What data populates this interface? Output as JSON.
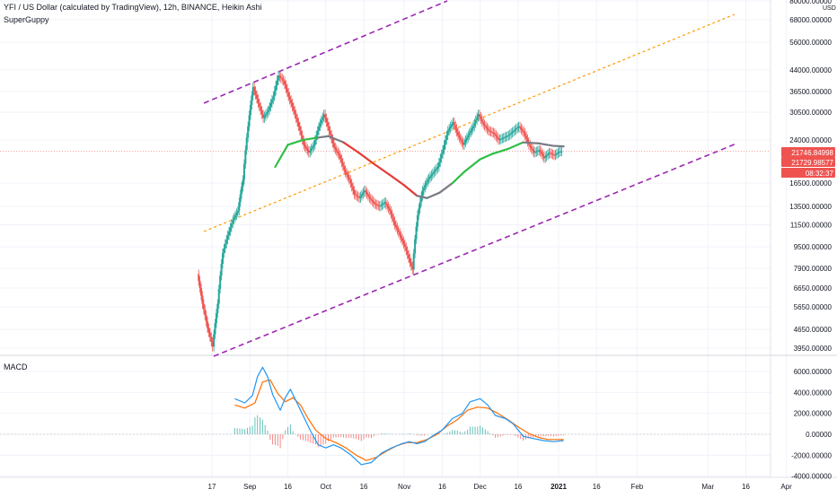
{
  "header": {
    "title": "YFI / US Dollar (calculated by TradingView), 12h, BINANCE, Heikin Ashi",
    "indicator": "SuperGuppy",
    "currency": "USD"
  },
  "macd_panel": {
    "label": "MACD"
  },
  "colors": {
    "up": "#26a69a",
    "down": "#ef5350",
    "channel": "#9c27b0",
    "midline": "#ff9800",
    "guppy_green": "#2fbe45",
    "guppy_red": "#e53935",
    "guppy_gray": "#787b86",
    "macd_line": "#2196f3",
    "signal_line": "#ff6d00",
    "grid": "#f0f3fa"
  },
  "badges": [
    {
      "label": "21746.84998",
      "color": "#ef5350"
    },
    {
      "label": "21729.98577",
      "color": "#ef5350"
    },
    {
      "label": "08:32:37",
      "color": "#ef5350"
    }
  ],
  "chart_data": [
    {
      "type": "line",
      "title": "YFI / US Dollar (calculated by TradingView), 12h, BINANCE, Heikin Ashi",
      "scale": "log",
      "x_axis_labels": [
        "17",
        "Sep",
        "16",
        "Oct",
        "16",
        "Nov",
        "16",
        "Dec",
        "16",
        "2021",
        "16",
        "Feb",
        "Mar",
        "16",
        "Apr"
      ],
      "y_axis_labels": [
        "80000.00000",
        "68000.00000",
        "56000.00000",
        "44000.00000",
        "36500.00000",
        "30500.00000",
        "24000.00000",
        "16500.00000",
        "13500.00000",
        "11500.00000",
        "9500.00000",
        "7900.00000",
        "6650.00000",
        "5650.00000",
        "4650.00000",
        "3950.00000"
      ],
      "ylim": [
        3400,
        82000
      ],
      "x_range": [
        "2020-08-12",
        "2021-04-08"
      ],
      "series": [
        {
          "name": "SuperGuppy",
          "values": [
            [
              "2020-09-11",
              19000
            ],
            [
              "2020-09-16",
              23000
            ],
            [
              "2020-09-22",
              24000
            ],
            [
              "2020-09-28",
              24500
            ],
            [
              "2020-10-02",
              24800
            ],
            [
              "2020-10-08",
              23500
            ],
            [
              "2020-10-14",
              21500
            ],
            [
              "2020-10-20",
              19500
            ],
            [
              "2020-10-26",
              17800
            ],
            [
              "2020-11-01",
              16200
            ],
            [
              "2020-11-06",
              14800
            ],
            [
              "2020-11-10",
              14500
            ],
            [
              "2020-11-15",
              15200
            ],
            [
              "2020-11-20",
              16500
            ],
            [
              "2020-11-25",
              18300
            ],
            [
              "2020-12-01",
              20300
            ],
            [
              "2020-12-06",
              21300
            ],
            [
              "2020-12-12",
              22200
            ],
            [
              "2020-12-18",
              23500
            ],
            [
              "2020-12-24",
              23300
            ],
            [
              "2020-12-30",
              22800
            ],
            [
              "2021-01-03",
              22700
            ]
          ]
        },
        {
          "name": "Price",
          "values": [
            [
              "2020-08-12",
              7500
            ],
            [
              "2020-08-14",
              5800
            ],
            [
              "2020-08-16",
              4700
            ],
            [
              "2020-08-18",
              4000
            ],
            [
              "2020-08-20",
              5800
            ],
            [
              "2020-08-22",
              9000
            ],
            [
              "2020-08-24",
              10500
            ],
            [
              "2020-08-26",
              12000
            ],
            [
              "2020-08-28",
              13000
            ],
            [
              "2020-08-30",
              17000
            ],
            [
              "2020-09-01",
              27000
            ],
            [
              "2020-09-03",
              38000
            ],
            [
              "2020-09-05",
              33000
            ],
            [
              "2020-09-07",
              29000
            ],
            [
              "2020-09-09",
              31000
            ],
            [
              "2020-09-11",
              35000
            ],
            [
              "2020-09-13",
              42000
            ],
            [
              "2020-09-15",
              40000
            ],
            [
              "2020-09-17",
              35000
            ],
            [
              "2020-09-19",
              31000
            ],
            [
              "2020-09-21",
              27000
            ],
            [
              "2020-09-23",
              23000
            ],
            [
              "2020-09-25",
              21500
            ],
            [
              "2020-09-27",
              23000
            ],
            [
              "2020-09-29",
              27000
            ],
            [
              "2020-10-01",
              30000
            ],
            [
              "2020-10-03",
              26000
            ],
            [
              "2020-10-05",
              22500
            ],
            [
              "2020-10-07",
              21000
            ],
            [
              "2020-10-09",
              18500
            ],
            [
              "2020-10-11",
              17000
            ],
            [
              "2020-10-13",
              15000
            ],
            [
              "2020-10-15",
              14500
            ],
            [
              "2020-10-17",
              15500
            ],
            [
              "2020-10-19",
              14500
            ],
            [
              "2020-10-21",
              13800
            ],
            [
              "2020-10-23",
              13500
            ],
            [
              "2020-10-25",
              14000
            ],
            [
              "2020-10-27",
              13000
            ],
            [
              "2020-10-29",
              11500
            ],
            [
              "2020-10-31",
              10500
            ],
            [
              "2020-11-02",
              9500
            ],
            [
              "2020-11-04",
              8300
            ],
            [
              "2020-11-05",
              7800
            ],
            [
              "2020-11-07",
              12500
            ],
            [
              "2020-11-09",
              15500
            ],
            [
              "2020-11-11",
              17000
            ],
            [
              "2020-11-13",
              18000
            ],
            [
              "2020-11-15",
              19000
            ],
            [
              "2020-11-17",
              22000
            ],
            [
              "2020-11-19",
              26000
            ],
            [
              "2020-11-21",
              28000
            ],
            [
              "2020-11-23",
              25000
            ],
            [
              "2020-11-25",
              23000
            ],
            [
              "2020-11-27",
              25000
            ],
            [
              "2020-11-29",
              27000
            ],
            [
              "2020-12-01",
              30000
            ],
            [
              "2020-12-03",
              27500
            ],
            [
              "2020-12-05",
              26000
            ],
            [
              "2020-12-07",
              25500
            ],
            [
              "2020-12-09",
              24000
            ],
            [
              "2020-12-11",
              24500
            ],
            [
              "2020-12-13",
              25000
            ],
            [
              "2020-12-15",
              26000
            ],
            [
              "2020-12-17",
              27000
            ],
            [
              "2020-12-19",
              25500
            ],
            [
              "2020-12-21",
              23000
            ],
            [
              "2020-12-23",
              21500
            ],
            [
              "2020-12-25",
              22000
            ],
            [
              "2020-12-27",
              20500
            ],
            [
              "2020-12-29",
              21500
            ],
            [
              "2020-12-31",
              21000
            ],
            [
              "2021-01-02",
              21700
            ],
            [
              "2021-01-03",
              21730
            ]
          ]
        }
      ]
    },
    {
      "type": "line",
      "title": "MACD",
      "y_axis_labels": [
        "6000.00000",
        "4000.00000",
        "2000.00000",
        "0.00000",
        "-2000.00000",
        "-4000.00000"
      ],
      "ylim": [
        -4300,
        7000
      ],
      "series": [
        {
          "name": "MACD",
          "values": [
            [
              "2020-08-26",
              3400
            ],
            [
              "2020-08-30",
              3000
            ],
            [
              "2020-09-02",
              3700
            ],
            [
              "2020-09-04",
              5500
            ],
            [
              "2020-09-06",
              6400
            ],
            [
              "2020-09-08",
              5500
            ],
            [
              "2020-09-10",
              3800
            ],
            [
              "2020-09-13",
              2300
            ],
            [
              "2020-09-15",
              3500
            ],
            [
              "2020-09-17",
              4300
            ],
            [
              "2020-09-19",
              3300
            ],
            [
              "2020-09-22",
              1800
            ],
            [
              "2020-09-25",
              300
            ],
            [
              "2020-09-28",
              -1000
            ],
            [
              "2020-10-01",
              -1300
            ],
            [
              "2020-10-04",
              -1000
            ],
            [
              "2020-10-07",
              -1300
            ],
            [
              "2020-10-11",
              -2000
            ],
            [
              "2020-10-15",
              -2900
            ],
            [
              "2020-10-19",
              -2700
            ],
            [
              "2020-10-23",
              -1800
            ],
            [
              "2020-10-27",
              -1300
            ],
            [
              "2020-10-31",
              -900
            ],
            [
              "2020-11-03",
              -700
            ],
            [
              "2020-11-06",
              -900
            ],
            [
              "2020-11-09",
              -700
            ],
            [
              "2020-11-12",
              -200
            ],
            [
              "2020-11-16",
              400
            ],
            [
              "2020-11-20",
              1500
            ],
            [
              "2020-11-24",
              2000
            ],
            [
              "2020-11-27",
              3100
            ],
            [
              "2020-12-01",
              3400
            ],
            [
              "2020-12-04",
              2800
            ],
            [
              "2020-12-07",
              1800
            ],
            [
              "2020-12-11",
              1500
            ],
            [
              "2020-12-14",
              1000
            ],
            [
              "2020-12-18",
              -200
            ],
            [
              "2020-12-22",
              -400
            ],
            [
              "2020-12-26",
              -600
            ],
            [
              "2020-12-30",
              -700
            ],
            [
              "2021-01-03",
              -600
            ]
          ]
        },
        {
          "name": "Signal",
          "values": [
            [
              "2020-08-26",
              2800
            ],
            [
              "2020-08-30",
              2500
            ],
            [
              "2020-09-03",
              3000
            ],
            [
              "2020-09-06",
              5000
            ],
            [
              "2020-09-09",
              5200
            ],
            [
              "2020-09-12",
              3900
            ],
            [
              "2020-09-15",
              3100
            ],
            [
              "2020-09-18",
              3500
            ],
            [
              "2020-09-21",
              2800
            ],
            [
              "2020-09-24",
              1500
            ],
            [
              "2020-09-27",
              400
            ],
            [
              "2020-10-01",
              -400
            ],
            [
              "2020-10-05",
              -800
            ],
            [
              "2020-10-09",
              -1300
            ],
            [
              "2020-10-13",
              -2000
            ],
            [
              "2020-10-17",
              -2500
            ],
            [
              "2020-10-21",
              -2200
            ],
            [
              "2020-10-25",
              -1600
            ],
            [
              "2020-10-29",
              -1100
            ],
            [
              "2020-11-02",
              -800
            ],
            [
              "2020-11-06",
              -800
            ],
            [
              "2020-11-10",
              -500
            ],
            [
              "2020-11-14",
              0
            ],
            [
              "2020-11-18",
              800
            ],
            [
              "2020-11-22",
              1400
            ],
            [
              "2020-11-26",
              2300
            ],
            [
              "2020-11-30",
              2600
            ],
            [
              "2020-12-04",
              2500
            ],
            [
              "2020-12-08",
              2000
            ],
            [
              "2020-12-12",
              1400
            ],
            [
              "2020-12-16",
              700
            ],
            [
              "2020-12-20",
              100
            ],
            [
              "2020-12-24",
              -300
            ],
            [
              "2020-12-28",
              -500
            ],
            [
              "2021-01-03",
              -500
            ]
          ]
        }
      ]
    }
  ]
}
